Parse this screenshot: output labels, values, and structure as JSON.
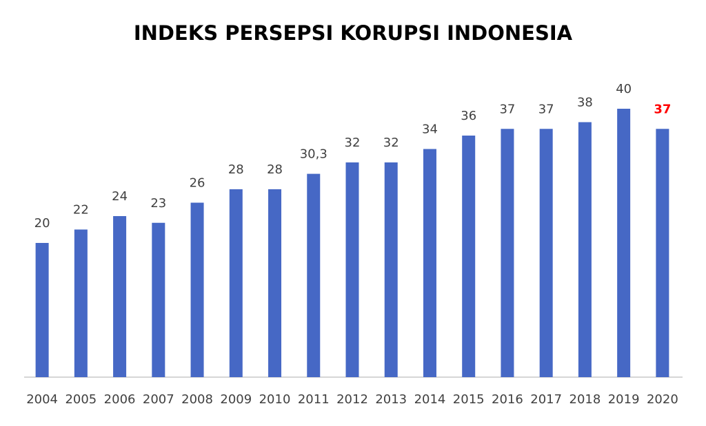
{
  "chart_data": {
    "type": "bar",
    "title": "INDEKS PERSEPSI KORUPSI INDONESIA",
    "categories": [
      "2004",
      "2005",
      "2006",
      "2007",
      "2008",
      "2009",
      "2010",
      "2011",
      "2012",
      "2013",
      "2014",
      "2015",
      "2016",
      "2017",
      "2018",
      "2019",
      "2020"
    ],
    "values": [
      20,
      22,
      24,
      23,
      26,
      28,
      28,
      30.3,
      32,
      32,
      34,
      36,
      37,
      37,
      38,
      40,
      37
    ],
    "value_labels": [
      "20",
      "22",
      "24",
      "23",
      "26",
      "28",
      "28",
      "30,3",
      "32",
      "32",
      "34",
      "36",
      "37",
      "37",
      "38",
      "40",
      "37"
    ],
    "value_label_colors": [
      "#404040",
      "#404040",
      "#404040",
      "#404040",
      "#404040",
      "#404040",
      "#404040",
      "#404040",
      "#404040",
      "#404040",
      "#404040",
      "#404040",
      "#404040",
      "#404040",
      "#404040",
      "#404040",
      "#ff0000"
    ],
    "value_label_bold": [
      false,
      false,
      false,
      false,
      false,
      false,
      false,
      false,
      false,
      false,
      false,
      false,
      false,
      false,
      false,
      false,
      true
    ],
    "color": "#4668c5",
    "ylim": [
      0,
      40
    ],
    "grid": false
  }
}
